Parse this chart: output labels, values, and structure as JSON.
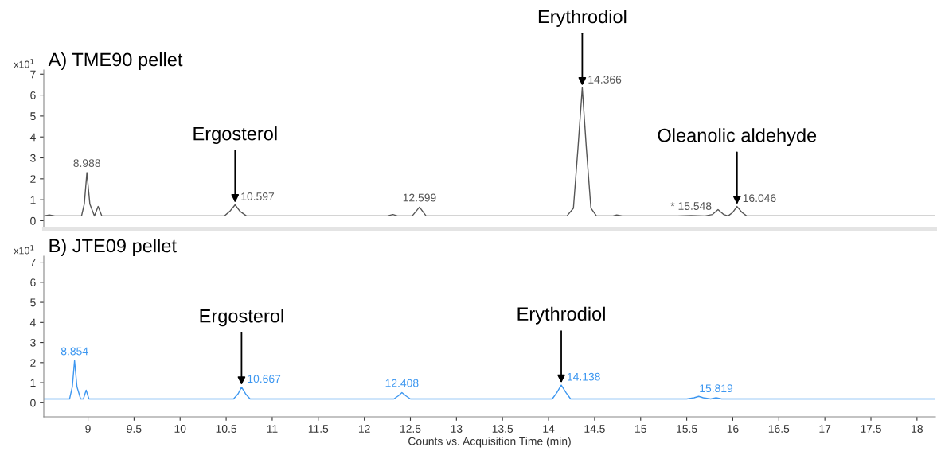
{
  "chart_data": [
    {
      "type": "line",
      "title": "A) TME90 pellet",
      "ylabel": "x10$^{1}$",
      "xlim": [
        8.52,
        18.2
      ],
      "xticks": [
        9,
        9.5,
        10,
        10.5,
        11,
        11.5,
        12,
        12.5,
        13,
        13.5,
        14,
        14.5,
        15,
        15.5,
        16,
        16.5,
        17,
        17.5,
        18
      ],
      "ylim": [
        -0.4,
        7.2
      ],
      "yticks": [
        0,
        1,
        2,
        3,
        4,
        5,
        6,
        7
      ],
      "tick_labels": "y",
      "grid": false,
      "legend": false,
      "marker": "none",
      "line_style": "solid",
      "series": [
        {
          "color": "#555555",
          "x": [
            8.52,
            8.58,
            8.64,
            8.93,
            8.96,
            8.988,
            9.02,
            9.07,
            9.11,
            9.15,
            9.5,
            10.48,
            10.54,
            10.597,
            10.65,
            10.72,
            12.25,
            12.31,
            12.36,
            12.52,
            12.599,
            12.67,
            14.2,
            14.27,
            14.32,
            14.366,
            14.41,
            14.46,
            14.52,
            14.7,
            14.74,
            14.8,
            15.4,
            15.548,
            15.7,
            15.78,
            15.84,
            15.9,
            15.95,
            16.0,
            16.046,
            16.1,
            16.15,
            18.2
          ],
          "values": [
            0.23,
            0.28,
            0.23,
            0.23,
            0.8,
            2.3,
            0.8,
            0.23,
            0.68,
            0.23,
            0.23,
            0.23,
            0.45,
            0.76,
            0.45,
            0.23,
            0.23,
            0.3,
            0.23,
            0.23,
            0.65,
            0.23,
            0.23,
            0.6,
            3.5,
            6.35,
            3.5,
            0.6,
            0.23,
            0.23,
            0.28,
            0.23,
            0.23,
            0.25,
            0.23,
            0.3,
            0.53,
            0.3,
            0.23,
            0.4,
            0.68,
            0.4,
            0.23,
            0.23
          ]
        }
      ],
      "annotations": [
        {
          "text": "8.988",
          "x": 8.988,
          "y": 2.3
        },
        {
          "text": "10.597",
          "x": 10.597,
          "y": 0.76
        },
        {
          "text": "12.599",
          "x": 12.599,
          "y": 0.65
        },
        {
          "text": "14.366",
          "x": 14.366,
          "y": 6.35
        },
        {
          "text": "* 15.548",
          "x": 15.548,
          "y": 0.25
        },
        {
          "text": "16.046",
          "x": 16.046,
          "y": 0.68
        },
        {
          "text": "Ergosterol",
          "x": 10.597,
          "y": 0.76
        },
        {
          "text": "Erythrodiol",
          "x": 14.366,
          "y": 6.35
        },
        {
          "text": "Oleanolic aldehyde",
          "x": 16.046,
          "y": 0.68
        }
      ]
    },
    {
      "type": "line",
      "title": "B) JTE09 pellet",
      "ylabel": "x10$^{1}$",
      "xlabel": "Counts vs. Acquisition Time (min)",
      "xlim": [
        8.52,
        18.2
      ],
      "xticks": [
        9,
        9.5,
        10,
        10.5,
        11,
        11.5,
        12,
        12.5,
        13,
        13.5,
        14,
        14.5,
        15,
        15.5,
        16,
        16.5,
        17,
        17.5,
        18
      ],
      "ylim": [
        -0.7,
        7.3
      ],
      "yticks": [
        0,
        1,
        2,
        3,
        4,
        5,
        6,
        7
      ],
      "grid": false,
      "legend": false,
      "marker": "none",
      "line_style": "solid",
      "series": [
        {
          "color": "#3d97f0",
          "x": [
            8.52,
            8.8,
            8.83,
            8.854,
            8.88,
            8.92,
            8.95,
            8.98,
            9.01,
            9.05,
            10.58,
            10.63,
            10.667,
            10.71,
            10.76,
            12.32,
            12.37,
            12.408,
            12.45,
            12.5,
            14.04,
            14.09,
            14.138,
            14.19,
            14.24,
            15.5,
            15.58,
            15.63,
            15.68,
            15.76,
            15.819,
            15.88,
            18.2
          ],
          "values": [
            0.19,
            0.19,
            0.8,
            2.1,
            0.8,
            0.19,
            0.19,
            0.63,
            0.19,
            0.19,
            0.19,
            0.45,
            0.78,
            0.45,
            0.19,
            0.19,
            0.35,
            0.51,
            0.35,
            0.19,
            0.19,
            0.5,
            0.88,
            0.5,
            0.19,
            0.19,
            0.25,
            0.32,
            0.25,
            0.19,
            0.25,
            0.19,
            0.19
          ]
        }
      ],
      "annotations": [
        {
          "text": "8.854",
          "x": 8.854,
          "y": 2.1
        },
        {
          "text": "10.667",
          "x": 10.667,
          "y": 0.78
        },
        {
          "text": "12.408",
          "x": 12.408,
          "y": 0.51
        },
        {
          "text": "14.138",
          "x": 14.138,
          "y": 0.88
        },
        {
          "text": "15.819",
          "x": 15.819,
          "y": 0.25
        },
        {
          "text": "Ergosterol",
          "x": 10.667,
          "y": 0.78
        },
        {
          "text": "Erythrodiol",
          "x": 14.138,
          "y": 0.88
        }
      ]
    }
  ]
}
